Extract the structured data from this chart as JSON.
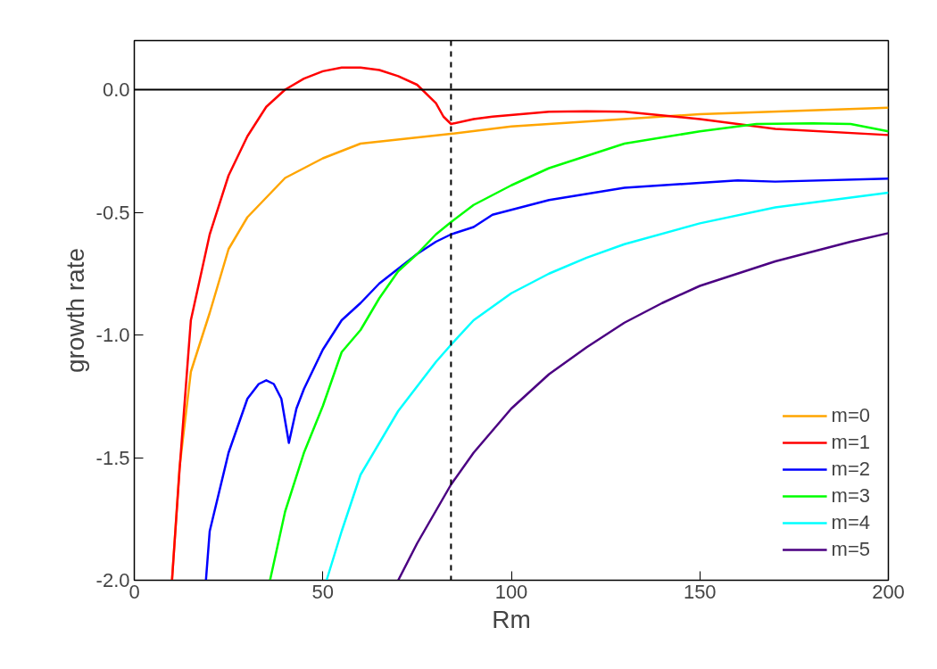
{
  "chart_data": {
    "type": "line",
    "xlabel": "Rm",
    "ylabel": "growth rate",
    "xlim": [
      0,
      200
    ],
    "xticks": [
      0,
      50,
      100,
      150,
      200
    ],
    "ylim": [
      -2.0,
      0.2
    ],
    "yticks": [
      {
        "value": -2.0,
        "label": "-2.0"
      },
      {
        "value": -1.5,
        "label": "-1.5"
      },
      {
        "value": -1.0,
        "label": "-1.0"
      },
      {
        "value": -0.5,
        "label": "-0.5"
      },
      {
        "value": 0.0,
        "label": "0.0"
      }
    ],
    "grid": false,
    "legend": "bottom right",
    "line_style": "solid",
    "marker": "none",
    "ref_lines": [
      {
        "axis": "y",
        "value": 0.0,
        "color": "#000000",
        "line_style": "solid"
      },
      {
        "axis": "x",
        "value": 84,
        "color": "#000000",
        "line_style": "dashed"
      }
    ],
    "series": [
      {
        "name": "m=0",
        "color": "#ffa500",
        "x": [
          10,
          12,
          15,
          20,
          25,
          30,
          40,
          50,
          60,
          84,
          100,
          150,
          200
        ],
        "values": [
          -2.0,
          -1.54,
          -1.15,
          -0.91,
          -0.65,
          -0.52,
          -0.36,
          -0.28,
          -0.22,
          -0.18,
          -0.15,
          -0.1,
          -0.074
        ]
      },
      {
        "name": "m=1",
        "color": "#ff0000",
        "x": [
          10,
          12,
          15,
          20,
          25,
          30,
          35,
          40,
          45,
          50,
          55,
          60,
          65,
          70,
          75,
          80,
          82,
          84,
          90,
          95,
          110,
          120,
          130,
          150,
          170,
          200
        ],
        "values": [
          -2.0,
          -1.55,
          -0.94,
          -0.59,
          -0.35,
          -0.19,
          -0.07,
          0.0,
          0.045,
          0.075,
          0.09,
          0.09,
          0.08,
          0.055,
          0.02,
          -0.055,
          -0.11,
          -0.14,
          -0.12,
          -0.11,
          -0.09,
          -0.088,
          -0.09,
          -0.12,
          -0.16,
          -0.185
        ]
      },
      {
        "name": "m=2",
        "color": "#0000ff",
        "x": [
          19,
          20,
          25,
          30,
          33,
          35,
          37,
          39,
          41,
          43,
          45,
          50,
          55,
          60,
          65,
          70,
          75,
          80,
          84,
          90,
          95,
          110,
          130,
          150,
          160,
          170,
          200
        ],
        "values": [
          -2.0,
          -1.8,
          -1.48,
          -1.26,
          -1.2,
          -1.185,
          -1.2,
          -1.26,
          -1.44,
          -1.3,
          -1.22,
          -1.06,
          -0.94,
          -0.87,
          -0.79,
          -0.73,
          -0.67,
          -0.62,
          -0.59,
          -0.56,
          -0.51,
          -0.45,
          -0.4,
          -0.38,
          -0.37,
          -0.375,
          -0.363
        ]
      },
      {
        "name": "m=3",
        "color": "#00ff00",
        "x": [
          36,
          40,
          45,
          50,
          55,
          60,
          65,
          70,
          75,
          80,
          84,
          90,
          100,
          110,
          120,
          130,
          150,
          165,
          180,
          190,
          200
        ],
        "values": [
          -2.0,
          -1.72,
          -1.48,
          -1.29,
          -1.07,
          -0.98,
          -0.85,
          -0.74,
          -0.67,
          -0.59,
          -0.54,
          -0.47,
          -0.39,
          -0.32,
          -0.27,
          -0.22,
          -0.17,
          -0.14,
          -0.137,
          -0.14,
          -0.17
        ]
      },
      {
        "name": "m=4",
        "color": "#00ffff",
        "x": [
          51,
          55,
          60,
          70,
          80,
          84,
          90,
          100,
          110,
          120,
          130,
          150,
          170,
          200
        ],
        "values": [
          -2.0,
          -1.8,
          -1.57,
          -1.31,
          -1.11,
          -1.04,
          -0.94,
          -0.83,
          -0.75,
          -0.685,
          -0.63,
          -0.545,
          -0.48,
          -0.42
        ]
      },
      {
        "name": "m=5",
        "color": "#4b0082",
        "x": [
          70,
          75,
          84,
          90,
          100,
          110,
          120,
          130,
          140,
          150,
          160,
          170,
          180,
          190,
          200
        ],
        "values": [
          -2.0,
          -1.85,
          -1.61,
          -1.48,
          -1.3,
          -1.16,
          -1.05,
          -0.95,
          -0.87,
          -0.8,
          -0.75,
          -0.7,
          -0.66,
          -0.62,
          -0.585
        ]
      }
    ]
  }
}
